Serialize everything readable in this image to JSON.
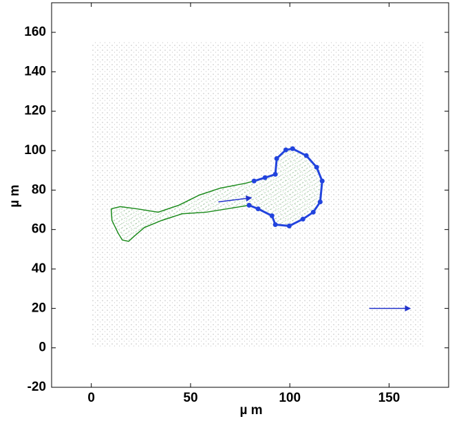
{
  "chart_data": {
    "type": "line",
    "xlabel": "µ m",
    "ylabel": "µ m",
    "xlim": [
      -20,
      180
    ],
    "ylim": [
      -20,
      175
    ],
    "xticks": [
      0,
      50,
      100,
      150
    ],
    "yticks": [
      -20,
      0,
      20,
      40,
      60,
      80,
      100,
      120,
      140,
      160
    ],
    "region": {
      "x": [
        0,
        168
      ],
      "y": [
        0,
        155
      ],
      "color": "#9a9a9a"
    },
    "series": [
      {
        "name": "cell outline",
        "color": "#1a8a1a",
        "x": [
          10,
          14.6,
          23,
          33.7,
          44,
          54.5,
          65,
          77.8,
          82,
          87.5,
          92.7,
          93.4,
          98,
          101.4,
          108.3,
          113.5,
          116.3,
          115.3,
          111.8,
          106.6,
          99.7,
          92.7,
          91,
          84,
          79.5,
          68.4,
          58,
          45.8,
          35.4,
          26.7,
          21.5,
          18.8,
          15.6,
          13.5,
          10.4,
          10
        ],
        "values": [
          70.5,
          71.6,
          70.5,
          68.8,
          72.3,
          77.5,
          81,
          83.5,
          84.6,
          86.3,
          88,
          96,
          100.4,
          101,
          97.5,
          91.6,
          84.6,
          74,
          68.8,
          65.3,
          61.8,
          62.5,
          67,
          70.5,
          72.3,
          70.5,
          68.8,
          68,
          64.6,
          61,
          56.5,
          54,
          54.7,
          58.2,
          64.6,
          70.5
        ]
      },
      {
        "name": "leading edge",
        "color": "#2244dd",
        "x": [
          82,
          87.5,
          92.7,
          93.4,
          98,
          101.4,
          108.3,
          113.5,
          116.3,
          115.3,
          111.8,
          106.6,
          99.7,
          92.7,
          91,
          84,
          79.5
        ],
        "values": [
          84.6,
          86.3,
          88,
          96,
          100.4,
          101,
          97.5,
          91.6,
          84.6,
          74,
          68.8,
          65.3,
          61.8,
          62.5,
          67,
          70.5,
          72.3
        ]
      },
      {
        "name": "cell velocity",
        "color": "#2233cc",
        "x": [
          64,
          80
        ],
        "values": [
          74,
          76
        ]
      },
      {
        "name": "scale arrow",
        "color": "#2233cc",
        "x": [
          140,
          160
        ],
        "values": [
          20,
          20
        ]
      }
    ]
  }
}
